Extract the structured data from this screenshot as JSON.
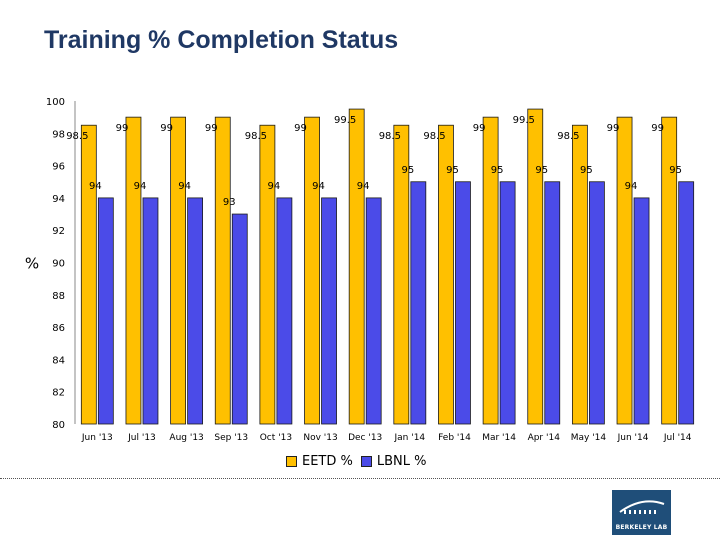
{
  "title": "Training % Completion Status",
  "colors": {
    "series1": "#FFC000",
    "series2": "#4B4BE8",
    "title": "#1F3864",
    "logo_bg": "#1F4E79"
  },
  "logo": {
    "caption": "BERKELEY LAB",
    "icon": "berkeley-lab-logo"
  },
  "chart_data": {
    "type": "bar",
    "title": "Training % Completion Status",
    "ylabel": "%",
    "xlabel": "",
    "ylim": [
      80,
      100
    ],
    "yticks": [
      80,
      82,
      84,
      86,
      88,
      90,
      92,
      94,
      96,
      98,
      100
    ],
    "grid": false,
    "legend_placement": "bottom",
    "categories": [
      "Jun '13",
      "Jul '13",
      "Aug '13",
      "Sep '13",
      "Oct '13",
      "Nov '13",
      "Dec '13",
      "Jan '14",
      "Feb '14",
      "Mar '14",
      "Apr '14",
      "May '14",
      "Jun '14",
      "Jul '14"
    ],
    "series": [
      {
        "name": "EETD %",
        "color": "#FFC000",
        "values": [
          98.5,
          99,
          99,
          99,
          98.5,
          99,
          99.5,
          98.5,
          98.5,
          99,
          99.5,
          98.5,
          99,
          99
        ]
      },
      {
        "name": "LBNL %",
        "color": "#4B4BE8",
        "values": [
          94,
          94,
          94,
          93,
          94,
          94,
          94,
          95,
          95,
          95,
          95,
          95,
          94,
          95
        ]
      }
    ]
  }
}
